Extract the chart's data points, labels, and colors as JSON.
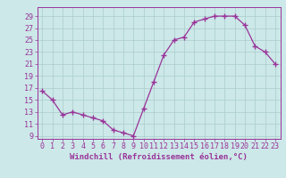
{
  "x": [
    0,
    1,
    2,
    3,
    4,
    5,
    6,
    7,
    8,
    9,
    10,
    11,
    12,
    13,
    14,
    15,
    16,
    17,
    18,
    19,
    20,
    21,
    22,
    23
  ],
  "y": [
    16.5,
    15.0,
    12.5,
    13.0,
    12.5,
    12.0,
    11.5,
    10.0,
    9.5,
    9.0,
    13.5,
    18.0,
    22.5,
    25.0,
    25.5,
    28.0,
    28.5,
    29.0,
    29.0,
    29.0,
    27.5,
    24.0,
    23.0,
    21.0
  ],
  "ylim": [
    8.5,
    30.5
  ],
  "yticks": [
    9,
    11,
    13,
    15,
    17,
    19,
    21,
    23,
    25,
    27,
    29
  ],
  "xlim": [
    -0.5,
    23.5
  ],
  "xticks": [
    0,
    1,
    2,
    3,
    4,
    5,
    6,
    7,
    8,
    9,
    10,
    11,
    12,
    13,
    14,
    15,
    16,
    17,
    18,
    19,
    20,
    21,
    22,
    23
  ],
  "line_color": "#993399",
  "marker_color": "#993399",
  "bg_color": "#cce8e8",
  "grid_color": "#aacccc",
  "xlabel": "Windchill (Refroidissement éolien,°C)",
  "xlabel_fontsize": 6.5,
  "tick_fontsize": 6.0
}
